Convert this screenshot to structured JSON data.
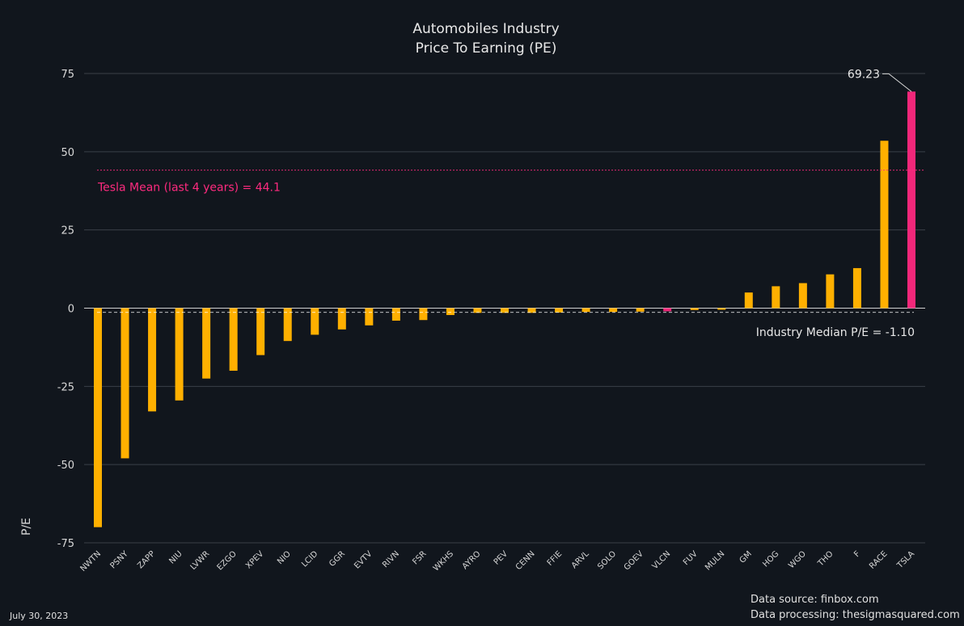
{
  "chart_data": {
    "type": "bar",
    "title": "Automobiles Industry",
    "subtitle": "Price To Earning (PE)",
    "ylabel": "P/E",
    "xlabel": "",
    "ylim": [
      -75,
      75
    ],
    "yticks": [
      75,
      50,
      25,
      0,
      -25,
      -50,
      -75
    ],
    "grid": true,
    "categories": [
      "NWTN",
      "PSNY",
      "ZAPP",
      "NIU",
      "LVWR",
      "EZGO",
      "XPEV",
      "NIO",
      "LCID",
      "GGR",
      "EVTV",
      "RIVN",
      "FSR",
      "WKHS",
      "AYRO",
      "PEV",
      "CENN",
      "FFIE",
      "ARVL",
      "SOLO",
      "GOEV",
      "VLCN",
      "FUV",
      "MULN",
      "GM",
      "HOG",
      "WGO",
      "THO",
      "F",
      "RACE",
      "TSLA"
    ],
    "values": [
      -70.0,
      -48.0,
      -33.0,
      -29.5,
      -22.5,
      -20.0,
      -15.0,
      -10.5,
      -8.5,
      -6.8,
      -5.5,
      -4.0,
      -3.8,
      -2.2,
      -1.5,
      -1.5,
      -1.5,
      -1.4,
      -1.2,
      -1.2,
      -1.1,
      -1.0,
      -0.6,
      -0.5,
      5.0,
      7.0,
      8.0,
      10.8,
      12.8,
      53.5,
      69.23
    ],
    "highlight": [
      "VLCN",
      "TSLA"
    ],
    "reference_lines": [
      {
        "label": "Tesla Mean (last 4 years)  = 44.1",
        "value": 44.1,
        "color": "#ff2a7f"
      },
      {
        "label": "Industry Median P/E = -1.10",
        "value": -1.1,
        "color": "#ffffff"
      }
    ],
    "annotation": {
      "label": "69.23",
      "category": "TSLA",
      "value": 69.23
    },
    "colors": {
      "bar": "#ffb000",
      "highlight": "#f2277a",
      "background": "#11161d",
      "grid": "#3a4048"
    }
  },
  "footer": {
    "source": "Data source: finbox.com",
    "processing": "Data processing: thesigmasquared.com",
    "date": "July 30, 2023"
  }
}
